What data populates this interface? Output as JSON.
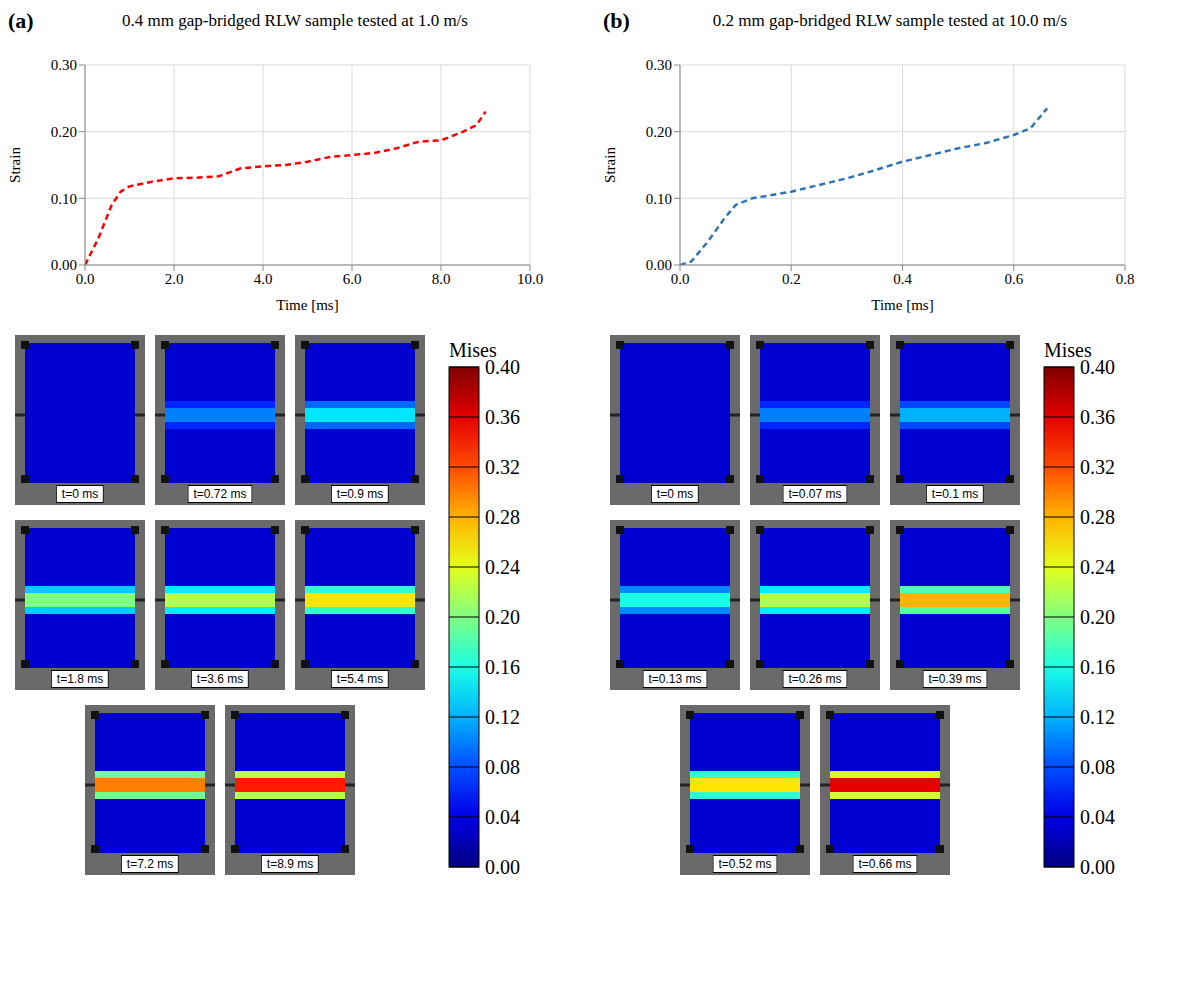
{
  "chart_data": [
    {
      "panel": "(a)",
      "type": "line",
      "title": "0.4 mm gap-bridged RLW sample tested at 1.0 m/s",
      "x_label": "Time [ms]",
      "y_label": "Strain",
      "x": [
        0,
        0.3,
        0.6,
        0.8,
        1.0,
        1.5,
        2.0,
        2.5,
        3.0,
        3.5,
        4.0,
        4.5,
        5.0,
        5.5,
        6.0,
        6.5,
        7.0,
        7.5,
        8.0,
        8.5,
        8.8,
        9.0
      ],
      "values": [
        0,
        0.04,
        0.09,
        0.11,
        0.118,
        0.125,
        0.13,
        0.131,
        0.133,
        0.145,
        0.148,
        0.15,
        0.155,
        0.162,
        0.165,
        0.168,
        0.175,
        0.185,
        0.187,
        0.2,
        0.21,
        0.23
      ],
      "color": "#ff0000",
      "line_style": "dashed",
      "grid": true,
      "xlim": [
        0,
        10
      ],
      "xticks": [
        {
          "value": 0,
          "label": "0.0"
        },
        {
          "value": 2,
          "label": "2.0"
        },
        {
          "value": 4,
          "label": "4.0"
        },
        {
          "value": 6,
          "label": "6.0"
        },
        {
          "value": 8,
          "label": "8.0"
        },
        {
          "value": 10,
          "label": "10.0"
        }
      ],
      "ylim": [
        0,
        0.3
      ],
      "yticks": [
        {
          "value": 0,
          "label": "0.00"
        },
        {
          "value": 0.1,
          "label": "0.10"
        },
        {
          "value": 0.2,
          "label": "0.20"
        },
        {
          "value": 0.3,
          "label": "0.30"
        }
      ],
      "frames": [
        {
          "label": "t=0 ms",
          "peak_mises": 0
        },
        {
          "label": "t=0.72 ms",
          "peak_mises": 0.1
        },
        {
          "label": "t=0.9 ms",
          "peak_mises": 0.14
        },
        {
          "label": "t=1.8 ms",
          "peak_mises": 0.2
        },
        {
          "label": "t=3.6 ms",
          "peak_mises": 0.22
        },
        {
          "label": "t=5.4 ms",
          "peak_mises": 0.26
        },
        {
          "label": "t=7.2 ms",
          "peak_mises": 0.3
        },
        {
          "label": "t=8.9 ms",
          "peak_mises": 0.34
        }
      ],
      "colorbar": {
        "label": "Mises",
        "range": [
          0,
          0.4
        ],
        "ticks": [
          {
            "value": 0,
            "label": "0.00"
          },
          {
            "value": 0.04,
            "label": "0.04"
          },
          {
            "value": 0.08,
            "label": "0.08"
          },
          {
            "value": 0.12,
            "label": "0.12"
          },
          {
            "value": 0.16,
            "label": "0.16"
          },
          {
            "value": 0.2,
            "label": "0.20"
          },
          {
            "value": 0.24,
            "label": "0.24"
          },
          {
            "value": 0.28,
            "label": "0.28"
          },
          {
            "value": 0.32,
            "label": "0.32"
          },
          {
            "value": 0.36,
            "label": "0.36"
          },
          {
            "value": 0.4,
            "label": "0.40"
          }
        ]
      }
    },
    {
      "panel": "(b)",
      "type": "line",
      "title": "0.2 mm gap-bridged RLW sample tested at 10.0 m/s",
      "x_label": "Time [ms]",
      "y_label": "Strain",
      "x": [
        0,
        0.02,
        0.05,
        0.08,
        0.1,
        0.13,
        0.2,
        0.25,
        0.3,
        0.35,
        0.4,
        0.45,
        0.5,
        0.55,
        0.6,
        0.63,
        0.66
      ],
      "values": [
        0,
        0.005,
        0.035,
        0.07,
        0.09,
        0.1,
        0.11,
        0.12,
        0.13,
        0.142,
        0.155,
        0.165,
        0.175,
        0.183,
        0.195,
        0.205,
        0.235
      ],
      "color": "#2e75b6",
      "line_style": "dashed",
      "grid": true,
      "xlim": [
        0,
        0.8
      ],
      "xticks": [
        {
          "value": 0,
          "label": "0.0"
        },
        {
          "value": 0.2,
          "label": "0.2"
        },
        {
          "value": 0.4,
          "label": "0.4"
        },
        {
          "value": 0.6,
          "label": "0.6"
        },
        {
          "value": 0.8,
          "label": "0.8"
        }
      ],
      "ylim": [
        0,
        0.3
      ],
      "yticks": [
        {
          "value": 0,
          "label": "0.00"
        },
        {
          "value": 0.1,
          "label": "0.10"
        },
        {
          "value": 0.2,
          "label": "0.20"
        },
        {
          "value": 0.3,
          "label": "0.30"
        }
      ],
      "frames": [
        {
          "label": "t=0 ms",
          "peak_mises": 0
        },
        {
          "label": "t=0.07 ms",
          "peak_mises": 0.1
        },
        {
          "label": "t=0.1 ms",
          "peak_mises": 0.12
        },
        {
          "label": "t=0.13 ms",
          "peak_mises": 0.16
        },
        {
          "label": "t=0.26 ms",
          "peak_mises": 0.22
        },
        {
          "label": "t=0.39 ms",
          "peak_mises": 0.28
        },
        {
          "label": "t=0.52 ms",
          "peak_mises": 0.26
        },
        {
          "label": "t=0.66 ms",
          "peak_mises": 0.36
        }
      ],
      "colorbar": {
        "label": "Mises",
        "range": [
          0,
          0.4
        ],
        "ticks": [
          {
            "value": 0,
            "label": "0.00"
          },
          {
            "value": 0.04,
            "label": "0.04"
          },
          {
            "value": 0.08,
            "label": "0.08"
          },
          {
            "value": 0.12,
            "label": "0.12"
          },
          {
            "value": 0.16,
            "label": "0.16"
          },
          {
            "value": 0.2,
            "label": "0.20"
          },
          {
            "value": 0.24,
            "label": "0.24"
          },
          {
            "value": 0.28,
            "label": "0.28"
          },
          {
            "value": 0.32,
            "label": "0.32"
          },
          {
            "value": 0.36,
            "label": "0.36"
          },
          {
            "value": 0.4,
            "label": "0.40"
          }
        ]
      }
    }
  ]
}
